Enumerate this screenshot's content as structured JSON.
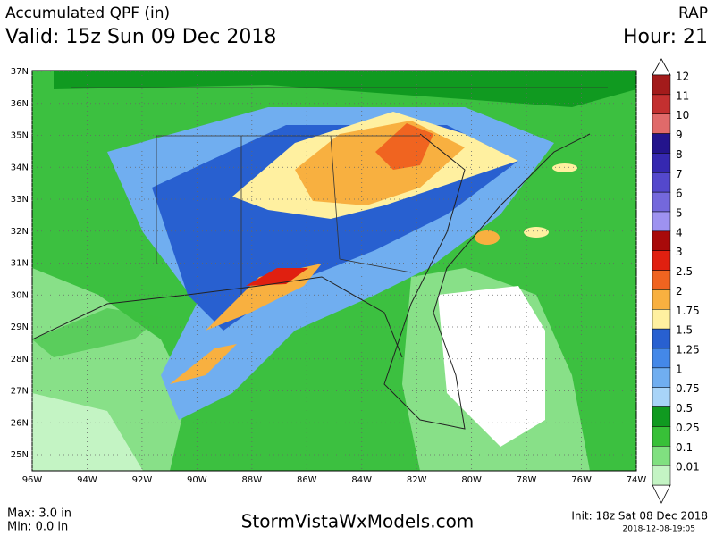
{
  "header": {
    "title": "Accumulated QPF (in)",
    "valid": "Valid: 15z Sun 09 Dec 2018",
    "model": "RAP",
    "hour": "Hour: 21"
  },
  "map": {
    "lat_labels": [
      "37N",
      "36N",
      "35N",
      "34N",
      "33N",
      "32N",
      "31N",
      "30N",
      "29N",
      "28N",
      "27N",
      "26N",
      "25N"
    ],
    "lon_labels": [
      "96W",
      "94W",
      "92W",
      "90W",
      "88W",
      "86W",
      "84W",
      "82W",
      "80W",
      "78W",
      "76W",
      "74W"
    ]
  },
  "legend": {
    "levels": [
      {
        "label": "12",
        "color": "#a31b1b"
      },
      {
        "label": "11",
        "color": "#c33030"
      },
      {
        "label": "10",
        "color": "#e06a6a"
      },
      {
        "label": "9",
        "color": "#23148c"
      },
      {
        "label": "8",
        "color": "#3528b0"
      },
      {
        "label": "7",
        "color": "#5448cc"
      },
      {
        "label": "6",
        "color": "#7468dc"
      },
      {
        "label": "5",
        "color": "#9e92f0"
      },
      {
        "label": "4",
        "color": "#a80a0a"
      },
      {
        "label": "3",
        "color": "#e02010"
      },
      {
        "label": "2.5",
        "color": "#f06420"
      },
      {
        "label": "2",
        "color": "#f8b040"
      },
      {
        "label": "1.75",
        "color": "#fff0a0"
      },
      {
        "label": "1.5",
        "color": "#2860d0"
      },
      {
        "label": "1.25",
        "color": "#4488e8"
      },
      {
        "label": "1",
        "color": "#70aef0"
      },
      {
        "label": "0.75",
        "color": "#a8d4f8"
      },
      {
        "label": "0.5",
        "color": "#109a20"
      },
      {
        "label": "0.25",
        "color": "#38c038"
      },
      {
        "label": "0.1",
        "color": "#80e080"
      },
      {
        "label": "0.01",
        "color": "#c4f4c4"
      }
    ]
  },
  "footer": {
    "max": "Max: 3.0 in",
    "min": "Min: 0.0 in",
    "site": "StormVistaWxModels.com",
    "init": "Init: 18z Sat 08 Dec 2018",
    "timestamp": "2018-12-08-19:05"
  }
}
